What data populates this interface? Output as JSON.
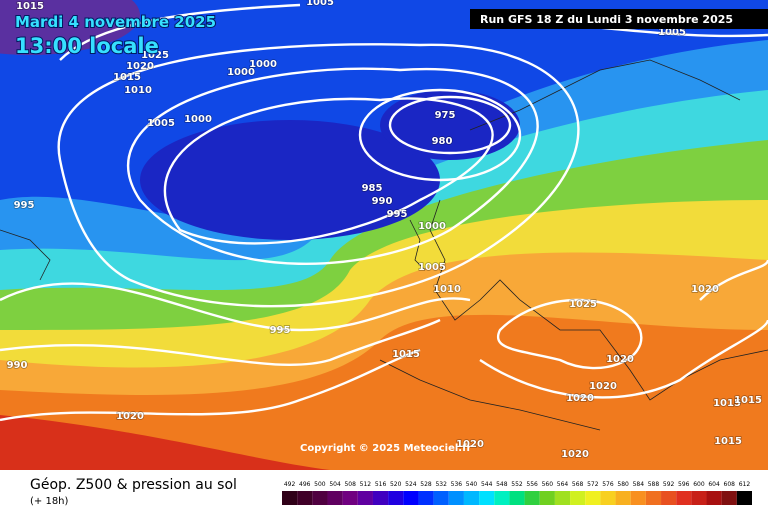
{
  "header": {
    "date": "Mardi 4 novembre 2025",
    "time": "13:00 locale",
    "run": "Run GFS 18 Z du Lundi 3 novembre 2025"
  },
  "map": {
    "pressure_labels": [
      1015,
      1005,
      1005,
      1025,
      1020,
      1015,
      1010,
      1000,
      1000,
      1005,
      1000,
      975,
      980,
      985,
      990,
      995,
      1000,
      1005,
      1010,
      995,
      995,
      990,
      1015,
      1025,
      1020,
      1020,
      1020,
      1020,
      1015,
      1015,
      1015,
      1020,
      1020,
      1020
    ],
    "copyright": "Copyright © 2025 Meteociel.fr"
  },
  "footer": {
    "title": "Géop. Z500 & pression au sol",
    "subtitle": "(+ 18h)",
    "scale": [
      492,
      496,
      500,
      504,
      508,
      512,
      516,
      520,
      524,
      528,
      532,
      536,
      540,
      544,
      548,
      552,
      556,
      560,
      564,
      568,
      572,
      576,
      580,
      584,
      588,
      592,
      596,
      600,
      604,
      608,
      612
    ]
  }
}
